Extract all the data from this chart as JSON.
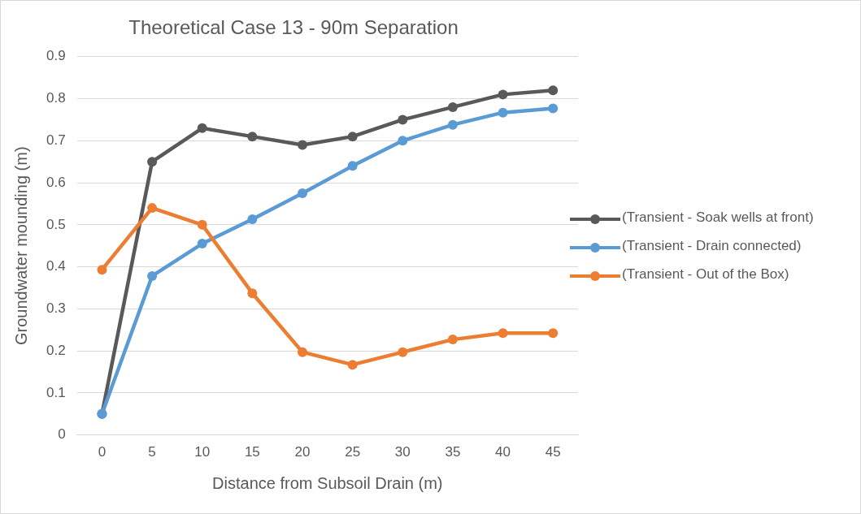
{
  "chart_data": {
    "type": "line",
    "title": "Theoretical Case 13 - 90m Separation",
    "xlabel": "Distance from Subsoil Drain (m)",
    "ylabel": "Groundwater mounding (m)",
    "categories": [
      "0",
      "5",
      "10",
      "15",
      "20",
      "25",
      "30",
      "35",
      "40",
      "45"
    ],
    "series": [
      {
        "name": "(Transient - Soak wells at front)",
        "color": "#595959",
        "values": [
          0.05,
          0.65,
          0.73,
          0.71,
          0.69,
          0.71,
          0.75,
          0.78,
          0.81,
          0.82
        ]
      },
      {
        "name": "(Transient - Drain connected)",
        "color": "#5b9bd5",
        "values": [
          0.05,
          0.378,
          0.455,
          0.513,
          0.575,
          0.64,
          0.7,
          0.738,
          0.767,
          0.777
        ]
      },
      {
        "name": "(Transient - Out of the Box)",
        "color": "#ed7d31",
        "values": [
          0.393,
          0.54,
          0.5,
          0.337,
          0.197,
          0.167,
          0.197,
          0.227,
          0.242,
          0.242
        ]
      }
    ],
    "ylim": [
      0,
      0.9
    ],
    "yticks": [
      0,
      0.1,
      0.2,
      0.3,
      0.4,
      0.5,
      0.6,
      0.7,
      0.8,
      0.9
    ],
    "grid": "y",
    "legend": "right",
    "marker": "circle",
    "line_style": "solid"
  }
}
